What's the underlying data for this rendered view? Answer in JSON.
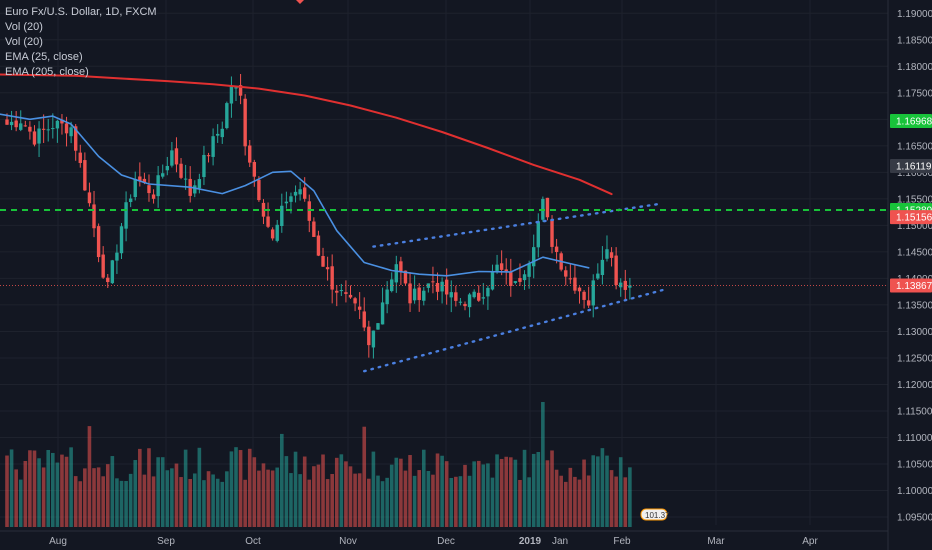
{
  "legend": {
    "title": "Euro Fx/U.S. Dollar, 1D, FXCM",
    "lines": [
      "Vol (20)",
      "Vol (20)",
      "EMA (25, close)",
      "EMA (205, close)"
    ]
  },
  "colors": {
    "background": "#131722",
    "grid": "#1e222d",
    "up": "#26a69a",
    "down": "#ef5350",
    "ema25": "#4a90e2",
    "ema205": "#e03030",
    "channel": "#4a7fe0",
    "resistance": "#18c33a"
  },
  "chart_data": {
    "type": "candlestick",
    "title": "Euro Fx/U.S. Dollar, 1D, FXCM",
    "x_ticks": [
      "Aug",
      "Sep",
      "Oct",
      "Nov",
      "Dec",
      "2019",
      "Jan",
      "Feb",
      "Mar",
      "Apr"
    ],
    "y_ticks": [
      "1.19000",
      "1.18500",
      "1.18000",
      "1.17500",
      "1.17000",
      "1.16500",
      "1.16000",
      "1.15500",
      "1.15000",
      "1.14500",
      "1.14000",
      "1.13500",
      "1.13000",
      "1.12500",
      "1.12000",
      "1.11500",
      "1.11000",
      "1.10500",
      "1.10000",
      "1.09500"
    ],
    "ylim": [
      1.0935,
      1.1925
    ],
    "price_labels": [
      {
        "value": 1.16968,
        "label": "1.16968",
        "color": "#18c33a"
      },
      {
        "value": 1.16119,
        "label": "1.16119",
        "color": "#363a45"
      },
      {
        "value": 1.15289,
        "label": "1.15289",
        "color": "#18c33a"
      },
      {
        "value": 1.15156,
        "label": "1.15156",
        "color": "#ef5350"
      },
      {
        "value": 1.13867,
        "label": "1.13867",
        "color": "#ef5350"
      }
    ],
    "resistance_level": 1.1529,
    "last_price": 1.13867,
    "ema205": [
      [
        -5,
        1.1785
      ],
      [
        15,
        1.1782
      ],
      [
        25,
        1.1777
      ],
      [
        35,
        1.1772
      ],
      [
        45,
        1.1766
      ],
      [
        55,
        1.1758
      ],
      [
        65,
        1.1745
      ],
      [
        75,
        1.1726
      ],
      [
        85,
        1.1703
      ],
      [
        95,
        1.1676
      ],
      [
        105,
        1.1646
      ],
      [
        115,
        1.1614
      ],
      [
        125,
        1.1586
      ],
      [
        132,
        1.1559
      ]
    ],
    "ema25": [
      [
        -5,
        1.1715
      ],
      [
        5,
        1.17
      ],
      [
        10,
        1.1706
      ],
      [
        14,
        1.1691
      ],
      [
        20,
        1.163
      ],
      [
        25,
        1.1595
      ],
      [
        31,
        1.1578
      ],
      [
        40,
        1.1572
      ],
      [
        47,
        1.156
      ],
      [
        52,
        1.1575
      ],
      [
        58,
        1.16
      ],
      [
        62,
        1.1602
      ],
      [
        67,
        1.1565
      ],
      [
        72,
        1.149
      ],
      [
        78,
        1.143
      ],
      [
        84,
        1.1415
      ],
      [
        90,
        1.1408
      ],
      [
        96,
        1.1405
      ],
      [
        103,
        1.1413
      ],
      [
        110,
        1.1412
      ],
      [
        117,
        1.144
      ],
      [
        123,
        1.1428
      ],
      [
        127,
        1.142
      ]
    ],
    "channel": {
      "upper": [
        [
          80,
          1.146
        ],
        [
          142,
          1.154
        ]
      ],
      "lower": [
        [
          78,
          1.1225
        ],
        [
          144,
          1.138
        ]
      ]
    },
    "volume_max": 190000,
    "annotation": "101.37"
  }
}
